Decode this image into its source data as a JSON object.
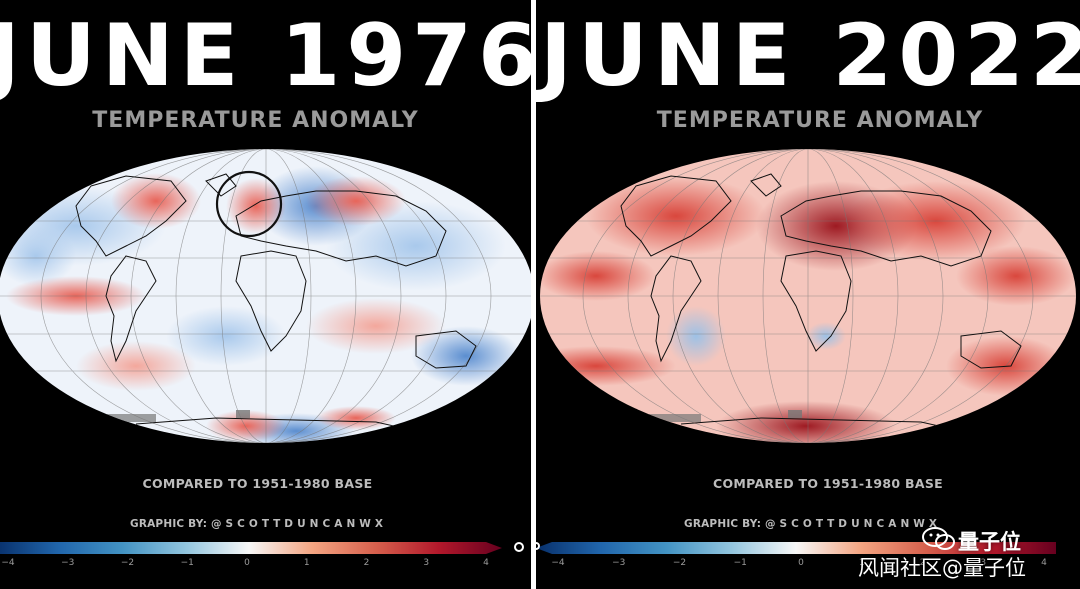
{
  "left_panel": {
    "title": "JUNE 1976",
    "subtitle": "TEMPERATURE ANOMALY",
    "base_note": "COMPARED TO 1951-1980 BASE",
    "credit": "GRAPHIC BY: @ S C O T T D U N C A N W X",
    "anomaly_tone": "mixed-cool",
    "highlight": "circled Western Europe warm anomaly"
  },
  "right_panel": {
    "title": "JUNE 2022",
    "subtitle": "TEMPERATURE ANOMALY",
    "base_note": "COMPARED TO 1951-1980 BASE",
    "credit": "GRAPHIC BY: @ S C O T T D U N C A N W X",
    "anomaly_tone": "widespread-warm"
  },
  "colorbar": {
    "ticks": [
      "−4",
      "−3",
      "−2",
      "−1",
      "0",
      "1",
      "2",
      "3",
      "4"
    ],
    "colors": [
      "#08306b",
      "#2166ac",
      "#4393c3",
      "#92c5de",
      "#f7f7f7",
      "#f4a582",
      "#d6604d",
      "#b2182b",
      "#67001f"
    ]
  },
  "watermark": {
    "brand": "量子位",
    "sub": "风闻社区@量子位",
    "icon": "wechat-icon"
  },
  "colors": {
    "background": "#000000",
    "title": "#ffffff",
    "subtitle": "#9a9a9a"
  }
}
